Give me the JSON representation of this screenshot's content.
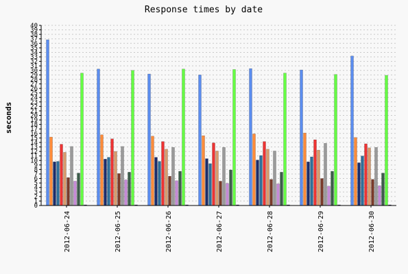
{
  "chart_data": {
    "type": "bar",
    "title": "Response times by date",
    "xlabel": "",
    "ylabel": "seconds",
    "ylim": [
      0,
      40
    ],
    "yticks": [
      0,
      1,
      2,
      3,
      4,
      5,
      6,
      7,
      8,
      9,
      10,
      11,
      12,
      13,
      14,
      15,
      16,
      17,
      18,
      19,
      20,
      21,
      22,
      23,
      24,
      25,
      26,
      27,
      28,
      29,
      30,
      31,
      32,
      33,
      34,
      35,
      36,
      37,
      38,
      39,
      40
    ],
    "grid": true,
    "legend": "none",
    "categories": [
      "2012-06-24",
      "2012-06-25",
      "2012-06-26",
      "2012-06-27",
      "2012-06-28",
      "2012-06-29",
      "2012-06-30"
    ],
    "series": [
      {
        "color": "#5b8def",
        "values": [
          36.8,
          30.3,
          29.2,
          29.0,
          30.4,
          30.1,
          33.2
        ]
      },
      {
        "color": "#ff8c3a",
        "values": [
          15.2,
          15.7,
          15.4,
          15.5,
          15.9,
          16.1,
          15.1
        ]
      },
      {
        "color": "#1c2d6b",
        "values": [
          9.7,
          10.3,
          10.7,
          10.4,
          10.1,
          9.7,
          9.5
        ]
      },
      {
        "color": "#2e6f9a",
        "values": [
          9.8,
          10.7,
          9.8,
          9.3,
          11.1,
          10.8,
          11.0
        ]
      },
      {
        "color": "#ee3333",
        "values": [
          13.6,
          14.8,
          14.2,
          13.9,
          14.2,
          14.6,
          13.7
        ]
      },
      {
        "color": "#d99b6c",
        "values": [
          11.8,
          12.0,
          12.5,
          12.1,
          12.5,
          12.3,
          12.8
        ]
      },
      {
        "color": "#7a3a2a",
        "values": [
          6.2,
          7.1,
          6.5,
          5.4,
          5.8,
          6.0,
          5.8
        ]
      },
      {
        "color": "#9a9a9a",
        "values": [
          13.1,
          13.1,
          12.9,
          12.9,
          12.1,
          13.8,
          12.9
        ]
      },
      {
        "color": "#c58ad6",
        "values": [
          5.4,
          5.7,
          5.5,
          4.9,
          4.8,
          4.3,
          4.4
        ]
      },
      {
        "color": "#3c5d4a",
        "values": [
          7.2,
          7.4,
          7.6,
          7.9,
          7.4,
          7.6,
          7.2
        ]
      },
      {
        "color": "#66ff44",
        "values": [
          29.4,
          30.0,
          30.3,
          30.2,
          29.4,
          29.1,
          28.9
        ]
      },
      {
        "color": "#333366",
        "values": [
          0.15,
          0.15,
          0.15,
          0.15,
          0.15,
          0.15,
          0.15
        ]
      }
    ]
  }
}
